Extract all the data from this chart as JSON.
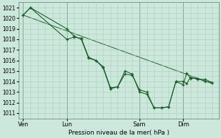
{
  "title": "",
  "xlabel": "Pression niveau de la mer( hPa )",
  "ylabel": "",
  "bg_color": "#cce8dc",
  "grid_color": "#aaccbb",
  "line_color": "#1a5c28",
  "ylim": [
    1010.5,
    1021.5
  ],
  "yticks": [
    1011,
    1012,
    1013,
    1014,
    1015,
    1016,
    1017,
    1018,
    1019,
    1020,
    1021
  ],
  "xtick_labels": [
    "Ven",
    "Lun",
    "Sam",
    "Dim"
  ],
  "xtick_positions": [
    0,
    48,
    128,
    176
  ],
  "total_points": 208,
  "series1_x": [
    0,
    8,
    48,
    56,
    64,
    72,
    80,
    88,
    96,
    104,
    112,
    120,
    128,
    136,
    144,
    152,
    160,
    168,
    176,
    180,
    184,
    192,
    200,
    208
  ],
  "series1_y": [
    1020.3,
    1021.0,
    1018.0,
    1018.2,
    1018.1,
    1016.3,
    1016.0,
    1015.3,
    1013.3,
    1013.5,
    1014.7,
    1014.6,
    1013.2,
    1013.0,
    1011.5,
    1011.5,
    1011.6,
    1014.0,
    1013.7,
    1014.8,
    1014.3,
    1014.3,
    1014.0,
    1013.9
  ],
  "series2_x": [
    0,
    8,
    48,
    56,
    64,
    72,
    80,
    88,
    96,
    104,
    112,
    120,
    128,
    136,
    144,
    152,
    160,
    168,
    176,
    180,
    184,
    192,
    200,
    208
  ],
  "series2_y": [
    1020.3,
    1021.0,
    1019.0,
    1018.3,
    1018.0,
    1016.2,
    1016.0,
    1015.4,
    1013.4,
    1013.5,
    1015.0,
    1014.7,
    1013.0,
    1012.8,
    1011.5,
    1011.5,
    1011.6,
    1014.0,
    1014.0,
    1013.8,
    1014.4,
    1014.2,
    1014.2,
    1013.9
  ],
  "series3_x": [
    0,
    208
  ],
  "series3_y": [
    1020.3,
    1013.8
  ],
  "vlines_x": [
    0,
    48,
    128,
    176
  ],
  "xlim": [
    -5,
    215
  ]
}
